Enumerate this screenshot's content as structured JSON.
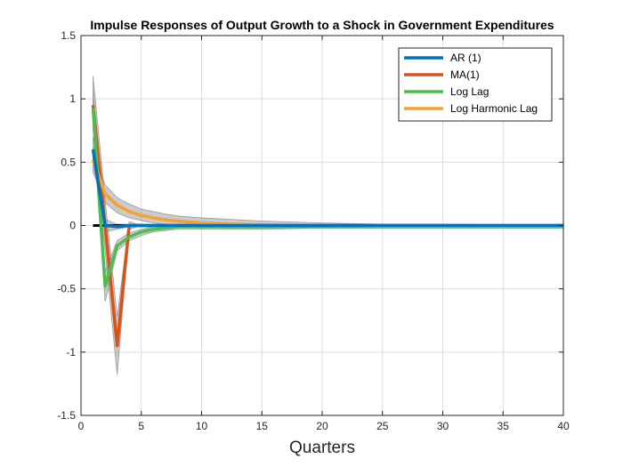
{
  "chart_data": {
    "type": "line",
    "title": "Impulse Responses of Output Growth to a Shock in Government Expenditures",
    "xlabel": "Quarters",
    "ylabel": "",
    "xlim": [
      0,
      40
    ],
    "ylim": [
      -1.5,
      1.5
    ],
    "xticks": [
      0,
      5,
      10,
      15,
      20,
      25,
      30,
      35,
      40
    ],
    "yticks": [
      -1.5,
      -1,
      -0.5,
      0,
      0.5,
      1,
      1.5
    ],
    "xtick_labels": [
      "0",
      "5",
      "10",
      "15",
      "20",
      "25",
      "30",
      "35",
      "40"
    ],
    "ytick_labels": [
      "-1.5",
      "-1",
      "-0.5",
      "0",
      "0.5",
      "1",
      "1.5"
    ],
    "grid": true,
    "legend_position": "top-right",
    "zero_line": {
      "y": 0,
      "color": "#000000"
    },
    "series": [
      {
        "name": "AR (1)",
        "color": "#0072BD",
        "x": [
          1,
          2,
          3,
          4,
          5,
          6,
          8,
          10,
          15,
          20,
          25,
          30,
          35,
          40
        ],
        "y": [
          0.6,
          0.0,
          -0.01,
          0,
          0,
          0,
          0,
          0,
          0,
          0,
          0,
          0,
          0,
          0
        ],
        "band": {
          "lower": [
            0.5,
            -0.05,
            -0.03,
            -0.01,
            -0.01,
            0,
            0,
            0,
            0,
            0,
            0,
            0,
            0,
            0
          ],
          "upper": [
            0.7,
            0.05,
            0.01,
            0.01,
            0.01,
            0,
            0,
            0,
            0,
            0,
            0,
            0,
            0,
            0
          ]
        }
      },
      {
        "name": "MA(1)",
        "color": "#D95319",
        "x": [
          1,
          2,
          3,
          4,
          5,
          8,
          10,
          15,
          20,
          25,
          30,
          35,
          40
        ],
        "y": [
          0.95,
          0.0,
          -0.95,
          0.0,
          0,
          0,
          0,
          0,
          0,
          0,
          0,
          0,
          0
        ],
        "band": {
          "lower": [
            0.75,
            -0.2,
            -1.18,
            -0.03,
            0,
            0,
            0,
            0,
            0,
            0,
            0,
            0,
            0
          ],
          "upper": [
            1.18,
            0.2,
            -0.72,
            0.03,
            0,
            0,
            0,
            0,
            0,
            0,
            0,
            0,
            0
          ]
        }
      },
      {
        "name": "Log Lag",
        "color": "#4DBE4D",
        "x": [
          1,
          2,
          3,
          4,
          5,
          6,
          7,
          8,
          10,
          12,
          15,
          20,
          25,
          30,
          35,
          40
        ],
        "y": [
          0.93,
          -0.48,
          -0.16,
          -0.09,
          -0.05,
          -0.03,
          -0.02,
          -0.01,
          -0.01,
          -0.01,
          -0.01,
          -0.01,
          -0.01,
          -0.01,
          -0.01,
          -0.01
        ],
        "band": {
          "lower": [
            0.78,
            -0.6,
            -0.2,
            -0.12,
            -0.08,
            -0.05,
            -0.04,
            -0.03,
            -0.03,
            -0.03,
            -0.03,
            -0.02,
            -0.02,
            -0.02,
            -0.02,
            -0.02
          ],
          "upper": [
            1.08,
            -0.36,
            -0.12,
            -0.06,
            -0.03,
            -0.01,
            0,
            0,
            0,
            0,
            0,
            0,
            0,
            0,
            0,
            0
          ]
        }
      },
      {
        "name": "Log Harmonic Lag",
        "color": "#F5A033",
        "x": [
          1,
          2,
          3,
          4,
          5,
          6,
          7,
          8,
          10,
          12,
          15,
          20,
          25,
          30,
          35,
          40
        ],
        "y": [
          0.52,
          0.25,
          0.16,
          0.11,
          0.08,
          0.06,
          0.045,
          0.035,
          0.02,
          0.012,
          0.005,
          0.0,
          -0.005,
          -0.005,
          -0.005,
          -0.005
        ],
        "band": {
          "lower": [
            0.42,
            0.18,
            0.1,
            0.06,
            0.04,
            0.02,
            0.01,
            0.0,
            -0.01,
            -0.02,
            -0.02,
            -0.02,
            -0.02,
            -0.02,
            -0.02,
            -0.02
          ],
          "upper": [
            0.62,
            0.32,
            0.22,
            0.17,
            0.13,
            0.11,
            0.09,
            0.075,
            0.06,
            0.05,
            0.035,
            0.02,
            0.01,
            0.01,
            0.005,
            0.005
          ]
        }
      }
    ]
  }
}
